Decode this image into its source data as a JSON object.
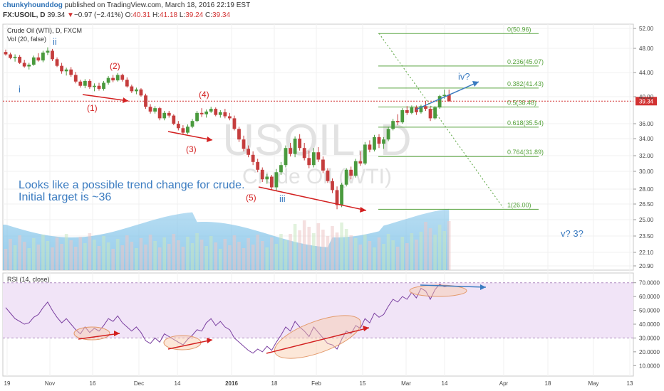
{
  "header": {
    "user": "chunkyhounddog",
    "published": "published on TradingView.com, March 18, 2016 22:19 EST",
    "symbol": "FX:USOIL, D",
    "price": "39.34",
    "change_arrow": "▼",
    "change": "−0.97 (−2.41%)",
    "o_label": "O:",
    "o_value": "40.31",
    "h_label": "H:",
    "h_value": "41.18",
    "l_label": "L:",
    "l_value": "39.24",
    "c_label": "C:",
    "c_value": "39.34"
  },
  "legend": {
    "series_title": "Crude Oil (WTI), D, FXCM",
    "volume_title": "Vol (20, false)",
    "rsi_title": "RSI (14, close)"
  },
  "watermark": {
    "big": "USOIL, D",
    "small": "Crude Oil (WTI)"
  },
  "price_tag": "39.34",
  "colors": {
    "up": "#4a9a3e",
    "down": "#c53d3d",
    "fib": "#57a33d",
    "annot_red": "#d32020",
    "annot_blue": "#3a7bc0",
    "rsi_line": "#7a3fa0",
    "rsi_band": "#f1e4f7",
    "vol_area": "#7fc2e8"
  },
  "annotations": {
    "wave_i": "i",
    "wave_ii": "ii",
    "wave_iii": "iii",
    "wave_iv": "iv?",
    "wave_v": "v? 3?",
    "w1": "(1)",
    "w2": "(2)",
    "w3": "(3)",
    "w4": "(4)",
    "w5": "(5)",
    "comment_line1": "Looks like a possible trend change for crude.",
    "comment_line2": "Initial target is ~36"
  },
  "chart_data": [
    {
      "type": "candlestick",
      "title": "Crude Oil (WTI), D, FXCM",
      "x_tick_labels": [
        "19",
        "Nov",
        "16",
        "Dec",
        "14",
        "2016",
        "18",
        "Feb",
        "15",
        "Mar",
        "14",
        "Apr",
        "18",
        "May",
        "13"
      ],
      "y_tick_labels": [
        "52.00",
        "48.00",
        "44.00",
        "40.00",
        "36.00",
        "34.00",
        "32.00",
        "30.00",
        "28.00",
        "26.50",
        "25.00",
        "23.50",
        "22.10",
        "20.90"
      ],
      "last_price": 39.34,
      "fib_retracement": [
        {
          "level": "0",
          "price": 50.96,
          "label": "0(50.96)"
        },
        {
          "level": "0.236",
          "price": 45.07,
          "label": "0.236(45.07)"
        },
        {
          "level": "0.382",
          "price": 41.43,
          "label": "0.382(41.43)"
        },
        {
          "level": "0.5",
          "price": 38.48,
          "label": "0.5(38.48)"
        },
        {
          "level": "0.618",
          "price": 35.54,
          "label": "0.618(35.54)"
        },
        {
          "level": "0.764",
          "price": 31.89,
          "label": "0.764(31.89)"
        },
        {
          "level": "1",
          "price": 26.0,
          "label": "1(26.00)"
        }
      ],
      "ohlc": [
        [
          47.4,
          47.8,
          46.8,
          47.0
        ],
        [
          47.0,
          47.3,
          46.2,
          46.4
        ],
        [
          46.4,
          47.0,
          45.8,
          46.6
        ],
        [
          46.6,
          46.9,
          45.4,
          45.6
        ],
        [
          45.6,
          46.1,
          44.8,
          45.0
        ],
        [
          45.0,
          45.6,
          44.5,
          45.3
        ],
        [
          45.3,
          46.8,
          45.1,
          46.5
        ],
        [
          46.5,
          47.2,
          45.8,
          46.0
        ],
        [
          46.0,
          47.6,
          45.7,
          47.3
        ],
        [
          47.3,
          48.2,
          46.9,
          47.6
        ],
        [
          47.6,
          47.9,
          45.9,
          46.2
        ],
        [
          46.2,
          46.5,
          44.9,
          45.1
        ],
        [
          45.1,
          45.6,
          43.8,
          44.2
        ],
        [
          44.2,
          44.8,
          43.5,
          44.5
        ],
        [
          44.5,
          44.9,
          43.3,
          43.6
        ],
        [
          43.6,
          44.1,
          42.2,
          42.5
        ],
        [
          42.5,
          42.8,
          41.5,
          41.8
        ],
        [
          41.8,
          42.9,
          41.4,
          42.6
        ],
        [
          42.6,
          42.9,
          41.3,
          41.6
        ],
        [
          41.6,
          42.2,
          40.9,
          41.8
        ],
        [
          41.8,
          42.3,
          41.0,
          41.3
        ],
        [
          41.3,
          42.6,
          41.0,
          42.3
        ],
        [
          42.3,
          43.4,
          42.0,
          43.1
        ],
        [
          43.1,
          43.6,
          42.4,
          42.7
        ],
        [
          42.7,
          43.9,
          42.5,
          43.6
        ],
        [
          43.6,
          43.8,
          42.5,
          42.8
        ],
        [
          42.8,
          43.2,
          41.5,
          41.7
        ],
        [
          41.7,
          42.0,
          40.6,
          40.9
        ],
        [
          40.9,
          41.5,
          40.4,
          41.2
        ],
        [
          41.2,
          41.4,
          40.0,
          40.2
        ],
        [
          40.2,
          40.5,
          38.2,
          38.5
        ],
        [
          38.5,
          38.9,
          37.5,
          37.8
        ],
        [
          37.8,
          38.6,
          37.5,
          38.3
        ],
        [
          38.3,
          38.5,
          36.5,
          36.8
        ],
        [
          36.8,
          37.9,
          36.5,
          37.6
        ],
        [
          37.6,
          37.9,
          36.9,
          37.2
        ],
        [
          37.2,
          37.4,
          35.8,
          36.0
        ],
        [
          36.0,
          36.4,
          35.1,
          35.4
        ],
        [
          35.4,
          35.8,
          34.5,
          34.8
        ],
        [
          34.8,
          35.9,
          34.6,
          35.6
        ],
        [
          35.6,
          36.7,
          35.4,
          36.4
        ],
        [
          36.4,
          37.9,
          36.2,
          37.6
        ],
        [
          37.6,
          38.3,
          37.0,
          37.4
        ],
        [
          37.4,
          38.1,
          36.9,
          37.8
        ],
        [
          37.8,
          38.5,
          37.6,
          38.2
        ],
        [
          38.2,
          38.4,
          37.1,
          37.3
        ],
        [
          37.3,
          38.0,
          36.9,
          37.7
        ],
        [
          37.7,
          38.2,
          36.8,
          37.1
        ],
        [
          37.1,
          37.6,
          36.5,
          36.8
        ],
        [
          36.8,
          37.2,
          35.1,
          35.3
        ],
        [
          35.3,
          35.6,
          33.6,
          33.9
        ],
        [
          33.9,
          34.4,
          32.5,
          32.8
        ],
        [
          32.8,
          33.2,
          31.8,
          32.1
        ],
        [
          32.1,
          32.5,
          30.8,
          31.2
        ],
        [
          31.2,
          31.6,
          29.9,
          30.2
        ],
        [
          30.2,
          30.5,
          28.8,
          29.1
        ],
        [
          29.1,
          29.7,
          28.6,
          29.4
        ],
        [
          29.4,
          29.6,
          27.9,
          28.2
        ],
        [
          28.2,
          30.3,
          27.8,
          29.9
        ],
        [
          29.9,
          31.2,
          29.6,
          30.8
        ],
        [
          30.8,
          33.2,
          30.5,
          32.9
        ],
        [
          32.9,
          33.5,
          31.9,
          32.2
        ],
        [
          32.2,
          34.3,
          31.8,
          34.0
        ],
        [
          34.0,
          34.6,
          32.6,
          32.9
        ],
        [
          32.9,
          33.5,
          31.4,
          31.7
        ],
        [
          31.7,
          32.6,
          30.4,
          30.8
        ],
        [
          30.8,
          32.9,
          30.5,
          32.4
        ],
        [
          32.4,
          33.0,
          31.2,
          31.5
        ],
        [
          31.5,
          31.9,
          29.8,
          30.1
        ],
        [
          30.1,
          30.4,
          28.7,
          28.9
        ],
        [
          28.9,
          29.2,
          27.6,
          27.9
        ],
        [
          27.9,
          28.3,
          26.0,
          26.4
        ],
        [
          26.4,
          28.7,
          26.2,
          28.5
        ],
        [
          28.5,
          30.4,
          28.3,
          30.2
        ],
        [
          30.2,
          30.6,
          29.1,
          29.5
        ],
        [
          29.5,
          31.6,
          29.3,
          31.3
        ],
        [
          31.3,
          32.5,
          30.7,
          31.0
        ],
        [
          31.0,
          33.6,
          30.8,
          33.3
        ],
        [
          33.3,
          33.8,
          32.4,
          32.7
        ],
        [
          32.7,
          34.5,
          32.5,
          34.2
        ],
        [
          34.2,
          34.6,
          32.9,
          33.4
        ],
        [
          33.4,
          34.2,
          32.8,
          33.9
        ],
        [
          33.9,
          35.6,
          33.7,
          35.3
        ],
        [
          35.3,
          36.7,
          35.1,
          36.4
        ],
        [
          36.4,
          37.4,
          35.8,
          36.2
        ],
        [
          36.2,
          38.3,
          36.0,
          38.0
        ],
        [
          38.0,
          38.6,
          37.3,
          37.6
        ],
        [
          37.6,
          38.7,
          37.4,
          38.4
        ],
        [
          38.4,
          38.7,
          37.3,
          37.7
        ],
        [
          37.7,
          38.8,
          37.5,
          38.6
        ],
        [
          38.6,
          39.3,
          37.9,
          38.2
        ],
        [
          38.2,
          38.5,
          36.4,
          36.8
        ],
        [
          36.8,
          38.6,
          36.6,
          38.4
        ],
        [
          38.4,
          40.3,
          38.2,
          40.1
        ],
        [
          40.1,
          41.2,
          39.7,
          40.3
        ],
        [
          40.31,
          41.18,
          39.24,
          39.34
        ]
      ]
    },
    {
      "type": "area",
      "title": "Vol (20, false)"
    },
    {
      "type": "line",
      "title": "RSI (14, close)",
      "y_tick_labels": [
        "70.0000",
        "60.0000",
        "50.0000",
        "40.0000",
        "30.0000",
        "20.0000",
        "10.0000"
      ],
      "ylim": [
        5,
        75
      ],
      "band": [
        30,
        70
      ],
      "values": [
        52,
        48,
        44,
        42,
        40,
        41,
        45,
        47,
        52,
        56,
        50,
        45,
        41,
        44,
        40,
        36,
        33,
        38,
        34,
        37,
        35,
        39,
        44,
        42,
        46,
        41,
        38,
        35,
        38,
        34,
        28,
        26,
        30,
        27,
        33,
        31,
        29,
        27,
        25,
        29,
        32,
        36,
        35,
        41,
        44,
        39,
        42,
        38,
        36,
        30,
        27,
        24,
        21,
        19,
        22,
        20,
        24,
        21,
        27,
        32,
        38,
        35,
        42,
        38,
        35,
        31,
        38,
        34,
        30,
        26,
        25,
        22,
        29,
        35,
        33,
        39,
        37,
        44,
        41,
        48,
        45,
        47,
        53,
        58,
        56,
        60,
        58,
        63,
        59,
        66,
        64,
        58,
        65,
        69,
        67,
        68
      ]
    }
  ]
}
